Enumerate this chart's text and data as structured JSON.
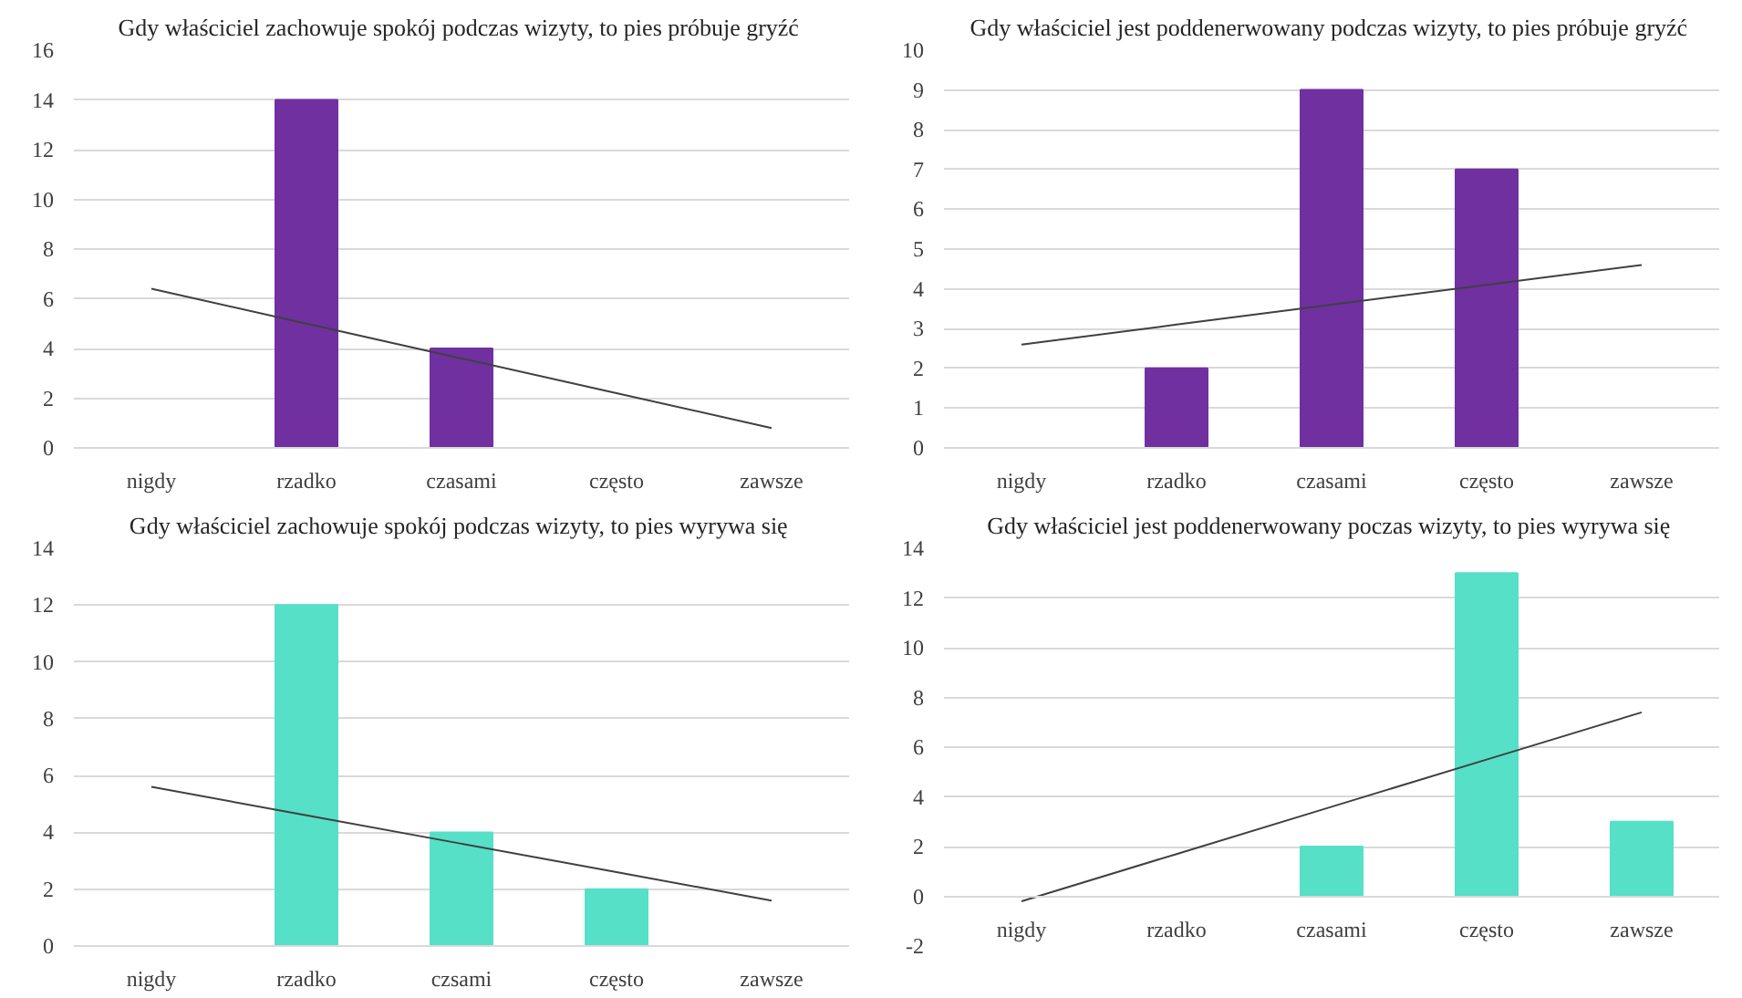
{
  "chart_data": [
    {
      "type": "bar",
      "title": "Gdy właściciel  zachowuje spokój podczas wizyty, to pies próbuje gryźć",
      "categories": [
        "nigdy",
        "rzadko",
        "czasami",
        "często",
        "zawsze"
      ],
      "series": [
        {
          "color": "#7030a0",
          "values": [
            0,
            14,
            4,
            0,
            0
          ]
        },
        {
          "type": "line",
          "color": "#404040",
          "values": [
            6.4,
            5.0,
            3.6,
            2.2,
            0.8
          ]
        }
      ],
      "ylim": [
        0,
        16
      ],
      "yticks": [
        0,
        2,
        4,
        6,
        8,
        10,
        12,
        14,
        16
      ],
      "grid": "y"
    },
    {
      "type": "bar",
      "title": "Gdy właściciel  jest poddenerwowany podczas wizyty, to pies próbuje gryźć",
      "categories": [
        "nigdy",
        "rzadko",
        "czasami",
        "często",
        "zawsze"
      ],
      "series": [
        {
          "color": "#7030a0",
          "values": [
            0,
            2,
            9,
            7,
            0
          ]
        },
        {
          "type": "line",
          "color": "#404040",
          "values": [
            2.6,
            3.1,
            3.6,
            4.1,
            4.6
          ]
        }
      ],
      "ylim": [
        0,
        10
      ],
      "yticks": [
        0,
        1,
        2,
        3,
        4,
        5,
        6,
        7,
        8,
        9,
        10
      ],
      "grid": "y"
    },
    {
      "type": "bar",
      "title": "Gdy właściciel  zachowuje spokój podczas wizyty, to pies wyrywa się",
      "categories": [
        "nigdy",
        "rzadko",
        "czsami",
        "często",
        "zawsze"
      ],
      "series": [
        {
          "color": "#56e0c8",
          "values": [
            0,
            12,
            4,
            2,
            0
          ]
        },
        {
          "type": "line",
          "color": "#404040",
          "values": [
            5.6,
            4.6,
            3.6,
            2.6,
            1.6
          ]
        }
      ],
      "ylim": [
        0,
        14
      ],
      "yticks": [
        0,
        2,
        4,
        6,
        8,
        10,
        12,
        14
      ],
      "grid": "y"
    },
    {
      "type": "bar",
      "title": "Gdy właściciel  jest poddenerwowany poczas wizyty, to pies wyrywa się",
      "categories": [
        "nigdy",
        "rzadko",
        "czasami",
        "często",
        "zawsze"
      ],
      "series": [
        {
          "color": "#56e0c8",
          "values": [
            0,
            0,
            2,
            13,
            3
          ]
        },
        {
          "type": "line",
          "color": "#404040",
          "values": [
            -0.2,
            1.7,
            3.6,
            5.5,
            7.4
          ]
        }
      ],
      "ylim": [
        -2,
        14
      ],
      "yticks": [
        -2,
        0,
        2,
        4,
        6,
        8,
        10,
        12,
        14
      ],
      "grid": "y"
    }
  ]
}
